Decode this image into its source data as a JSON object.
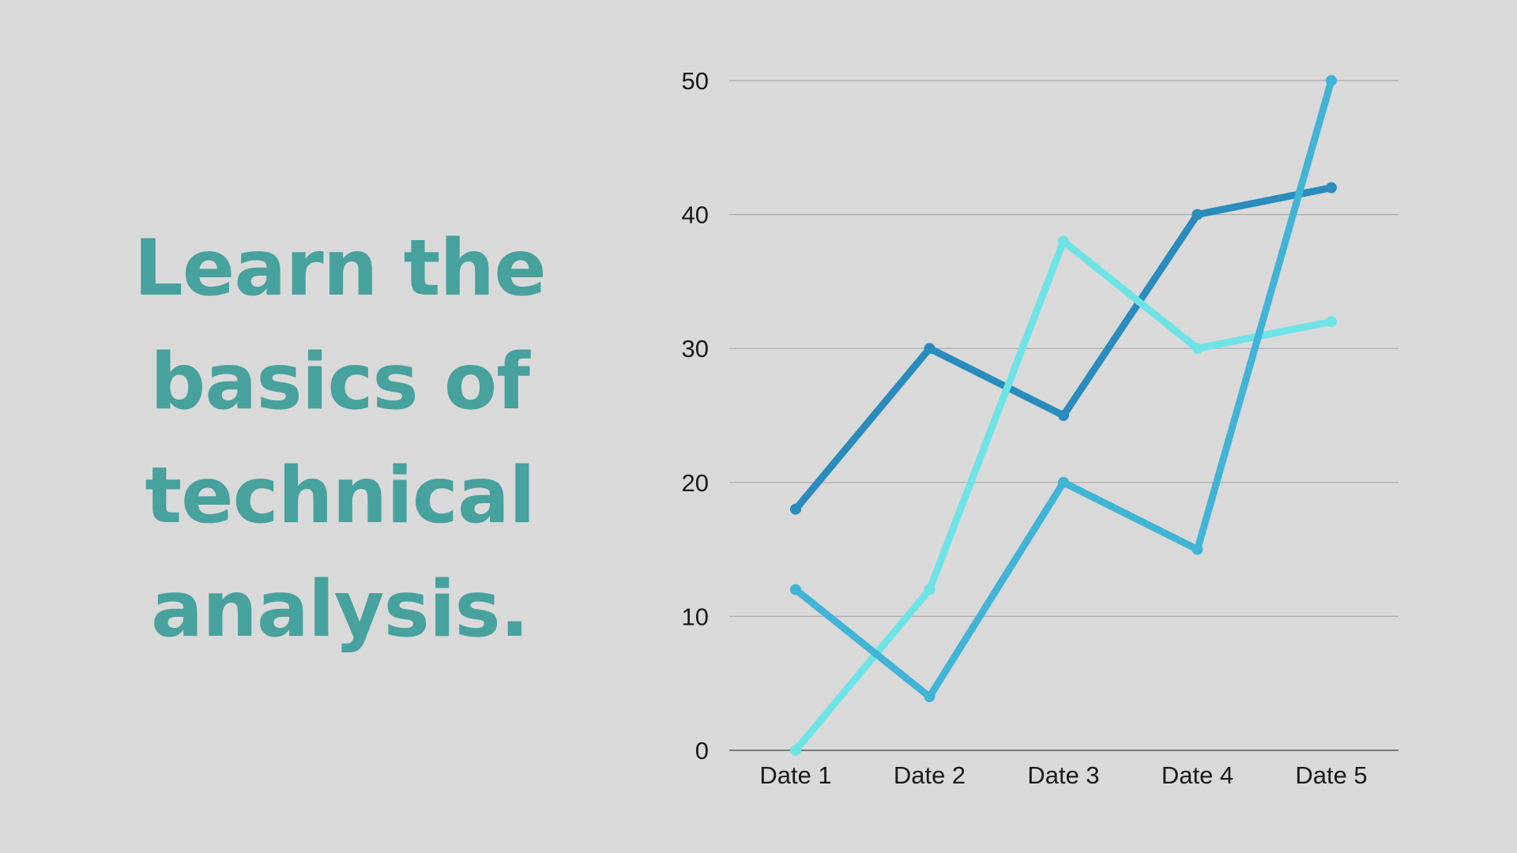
{
  "headline": {
    "lines": [
      "Learn the",
      "basics of",
      "technical",
      "analysis."
    ],
    "color": "#47a19d"
  },
  "colors": {
    "background": "#d9d9d9",
    "gridline": "#a9a9a9",
    "axis": "#7a7a7a"
  },
  "chart_data": {
    "type": "line",
    "categories": [
      "Date 1",
      "Date 2",
      "Date 3",
      "Date 4",
      "Date 5"
    ],
    "ylim": [
      0,
      50
    ],
    "yticks": [
      0,
      10,
      20,
      30,
      40,
      50
    ],
    "grid": true,
    "legend": "none",
    "title": "",
    "xlabel": "",
    "ylabel": "",
    "series": [
      {
        "values": [
          18,
          30,
          25,
          40,
          42
        ],
        "color": "#2a8bbd"
      },
      {
        "values": [
          0,
          12,
          38,
          30,
          32
        ],
        "color": "#6ee3e5"
      },
      {
        "values": [
          12,
          4,
          20,
          15,
          50
        ],
        "color": "#41b4d6"
      }
    ]
  }
}
